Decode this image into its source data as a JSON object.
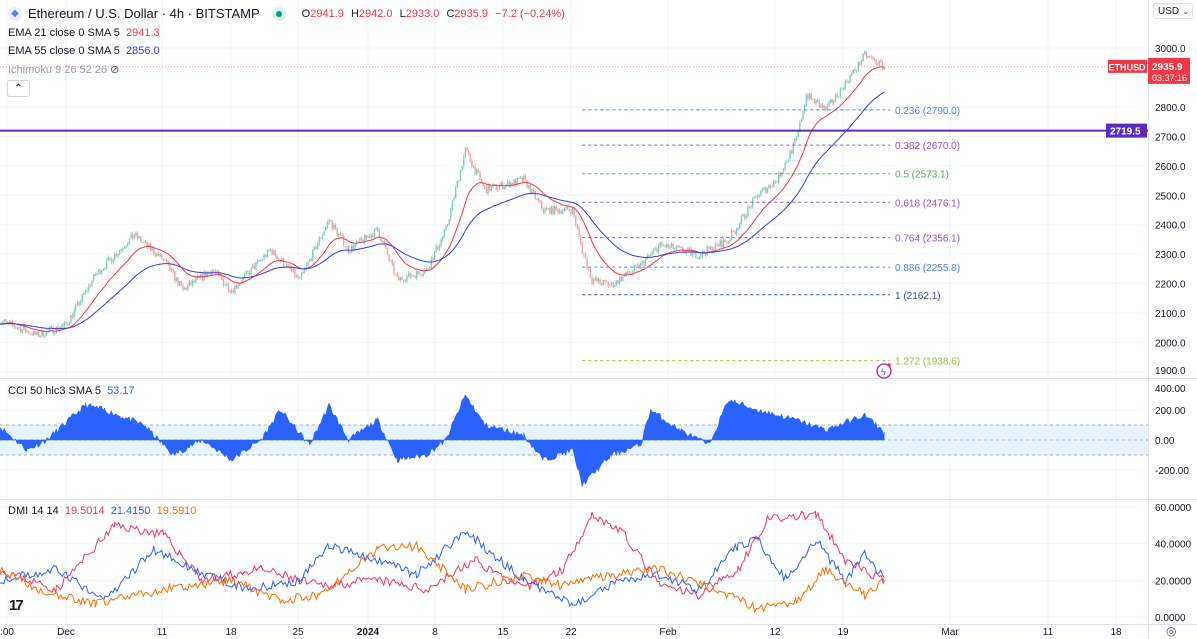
{
  "header": {
    "symbol_title": "Ethereum / U.S. Dollar · 4h · BITSTAMP",
    "ohlc": {
      "o_label": "O",
      "o": "2941.9",
      "h_label": "H",
      "h": "2942.0",
      "l_label": "L",
      "l": "2933.0",
      "c_label": "C",
      "c": "2935.9",
      "change": "−7.2 (−0.24%)"
    },
    "currency": "USD",
    "collapse_icon": "chevron-up-icon"
  },
  "indicators": {
    "ema21": {
      "label": "EMA 21 close 0 SMA 5",
      "value": "2941.3",
      "color": "#f23645"
    },
    "ema55": {
      "label": "EMA 55 close 0 SMA 5",
      "value": "2856.0",
      "color": "#2f3de0"
    },
    "ichimoku": {
      "label": "Ichimoku 9 26 52 26",
      "hidden_icon": "eye-off-icon"
    },
    "cci": {
      "label": "CCI 50 hlc3 SMA 5",
      "value": "53.17",
      "color": "#2962ff"
    },
    "dmi": {
      "label": "DMI 14 14",
      "values": [
        "19.5014",
        "21.4150",
        "19.5910"
      ],
      "colors": [
        "#f23567",
        "#2962ff",
        "#ff6d00"
      ]
    }
  },
  "price_scale": {
    "ticks": [
      "3000.0",
      "2800.0",
      "2700.0",
      "2600.0",
      "2500.0",
      "2400.0",
      "2300.0",
      "2200.0",
      "2100.0",
      "2000.0",
      "1900.0"
    ]
  },
  "cci_scale": {
    "ticks": [
      "400.00",
      "200.00",
      "0.00",
      "-200.00"
    ]
  },
  "dmi_scale": {
    "ticks": [
      "60.0000",
      "40.0000",
      "20.0000",
      "0.0000"
    ]
  },
  "time_axis": {
    "labels": [
      ":00",
      "Dec",
      "11",
      "18",
      "25",
      "2024",
      "8",
      "15",
      "22",
      "Feb",
      "12",
      "19",
      "Mar",
      "11",
      "18"
    ]
  },
  "price_label": {
    "symbol": "ETHUSD",
    "price": "2935.9",
    "countdown": "03:37:16",
    "color": "#f23645"
  },
  "horizontal_line": {
    "value": "2719.5",
    "color": "#5b2bc0"
  },
  "fib_levels": [
    {
      "label": "0.236 (2790.0)",
      "value": 2790.0,
      "color": "#4f7ff0"
    },
    {
      "label": "0.382 (2670.0)",
      "value": 2670.0,
      "color": "#8459d6"
    },
    {
      "label": "0.5 (2573.1)",
      "value": 2573.1,
      "color": "#4caf50"
    },
    {
      "label": "0.618 (2476.1)",
      "value": 2476.1,
      "color": "#8459d6"
    },
    {
      "label": "0.764 (2356.1)",
      "value": 2356.1,
      "color": "#8459d6"
    },
    {
      "label": "0.886 (2255.8)",
      "value": 2255.8,
      "color": "#4f7ff0"
    },
    {
      "label": "1 (2162.1)",
      "value": 2162.1,
      "color": "#3949ab"
    },
    {
      "label": "1.272 (1938.6)",
      "value": 1938.6,
      "color": "#9bbf3a"
    }
  ],
  "colors": {
    "up": "#7dcfc2",
    "down": "#f2a3a3",
    "grid": "#f0f3fa",
    "cci_fill": "#2962ff",
    "cci_band": "#e6f2fd"
  },
  "chart_data": {
    "type": "candlestick",
    "price_range": [
      1880,
      3060
    ],
    "price_path": [
      [
        "2023-11-24",
        2076
      ],
      [
        "2023-11-28",
        2025
      ],
      [
        "2023-12-01",
        2059
      ],
      [
        "2023-12-04",
        2229
      ],
      [
        "2023-12-08",
        2365
      ],
      [
        "2023-12-11",
        2280
      ],
      [
        "2023-12-13",
        2178
      ],
      [
        "2023-12-16",
        2246
      ],
      [
        "2023-12-18",
        2178
      ],
      [
        "2023-12-22",
        2314
      ],
      [
        "2023-12-25",
        2212
      ],
      [
        "2023-12-28",
        2416
      ],
      [
        "2023-12-30",
        2314
      ],
      [
        "2024-01-02",
        2382
      ],
      [
        "2024-01-04",
        2212
      ],
      [
        "2024-01-07",
        2246
      ],
      [
        "2024-01-09",
        2382
      ],
      [
        "2024-01-11",
        2654
      ],
      [
        "2024-01-13",
        2518
      ],
      [
        "2024-01-17",
        2552
      ],
      [
        "2024-01-19",
        2450
      ],
      [
        "2024-01-22",
        2450
      ],
      [
        "2024-01-23",
        2314
      ],
      [
        "2024-01-24",
        2212
      ],
      [
        "2024-01-26",
        2195
      ],
      [
        "2024-01-29",
        2263
      ],
      [
        "2024-01-31",
        2331
      ],
      [
        "2024-02-04",
        2297
      ],
      [
        "2024-02-07",
        2348
      ],
      [
        "2024-02-10",
        2501
      ],
      [
        "2024-02-12",
        2552
      ],
      [
        "2024-02-14",
        2688
      ],
      [
        "2024-02-15",
        2840
      ],
      [
        "2024-02-17",
        2789
      ],
      [
        "2024-02-20",
        2925
      ],
      [
        "2024-02-21",
        2976
      ],
      [
        "2024-02-23",
        2935.9
      ]
    ],
    "fib_start": "2024-01-23",
    "cci": {
      "range": [
        -320,
        420
      ],
      "bands": [
        100,
        -100
      ],
      "points": [
        [
          "2023-11-24",
          100
        ],
        [
          "2023-11-27",
          -67
        ],
        [
          "2023-11-29",
          0
        ],
        [
          "2023-12-03",
          233
        ],
        [
          "2023-12-05",
          200
        ],
        [
          "2023-12-09",
          100
        ],
        [
          "2023-12-12",
          -100
        ],
        [
          "2023-12-15",
          0
        ],
        [
          "2023-12-18",
          -133
        ],
        [
          "2023-12-21",
          0
        ],
        [
          "2023-12-23",
          200
        ],
        [
          "2023-12-26",
          -33
        ],
        [
          "2023-12-28",
          233
        ],
        [
          "2023-12-30",
          0
        ],
        [
          "2024-01-02",
          133
        ],
        [
          "2024-01-04",
          -133
        ],
        [
          "2024-01-07",
          -100
        ],
        [
          "2024-01-09",
          0
        ],
        [
          "2024-01-11",
          300
        ],
        [
          "2024-01-13",
          100
        ],
        [
          "2024-01-17",
          33
        ],
        [
          "2024-01-19",
          -133
        ],
        [
          "2024-01-22",
          -67
        ],
        [
          "2024-01-23",
          -300
        ],
        [
          "2024-01-26",
          -100
        ],
        [
          "2024-01-29",
          -33
        ],
        [
          "2024-01-30",
          200
        ],
        [
          "2024-02-02",
          67
        ],
        [
          "2024-02-05",
          -33
        ],
        [
          "2024-02-07",
          267
        ],
        [
          "2024-02-10",
          200
        ],
        [
          "2024-02-14",
          133
        ],
        [
          "2024-02-17",
          67
        ],
        [
          "2024-02-21",
          167
        ],
        [
          "2024-02-23",
          53.17
        ]
      ]
    },
    "dmi": {
      "range": [
        0,
        60
      ],
      "series": [
        {
          "points": [
            [
              "2023-11-24",
              26
            ],
            [
              "2023-11-30",
              15
            ],
            [
              "2023-12-06",
              50
            ],
            [
              "2023-12-11",
              45
            ],
            [
              "2023-12-15",
              20
            ],
            [
              "2023-12-21",
              26
            ],
            [
              "2023-12-27",
              17
            ],
            [
              "2024-01-02",
              20
            ],
            [
              "2024-01-07",
              15
            ],
            [
              "2024-01-12",
              31
            ],
            [
              "2024-01-17",
              15
            ],
            [
              "2024-01-21",
              26
            ],
            [
              "2024-01-24",
              56
            ],
            [
              "2024-01-27",
              47
            ],
            [
              "2024-01-31",
              17
            ],
            [
              "2024-02-04",
              12
            ],
            [
              "2024-02-08",
              26
            ],
            [
              "2024-02-11",
              53
            ],
            [
              "2024-02-16",
              56
            ],
            [
              "2024-02-19",
              31
            ],
            [
              "2024-02-23",
              19.5
            ]
          ]
        },
        {
          "points": [
            [
              "2023-11-24",
              20
            ],
            [
              "2023-11-30",
              26
            ],
            [
              "2023-12-05",
              9
            ],
            [
              "2023-12-10",
              37
            ],
            [
              "2023-12-15",
              23
            ],
            [
              "2023-12-20",
              15
            ],
            [
              "2023-12-25",
              20
            ],
            [
              "2023-12-28",
              39
            ],
            [
              "2024-01-02",
              31
            ],
            [
              "2024-01-06",
              23
            ],
            [
              "2024-01-11",
              47
            ],
            [
              "2024-01-17",
              20
            ],
            [
              "2024-01-22",
              7
            ],
            [
              "2024-01-27",
              20
            ],
            [
              "2024-01-31",
              23
            ],
            [
              "2024-02-04",
              15
            ],
            [
              "2024-02-08",
              39
            ],
            [
              "2024-02-10",
              42
            ],
            [
              "2024-02-13",
              20
            ],
            [
              "2024-02-16",
              42
            ],
            [
              "2024-02-19",
              20
            ],
            [
              "2024-02-21",
              34
            ],
            [
              "2024-02-23",
              21.4
            ]
          ]
        },
        {
          "points": [
            [
              "2023-11-24",
              26
            ],
            [
              "2023-11-28",
              15
            ],
            [
              "2023-12-04",
              7
            ],
            [
              "2023-12-11",
              15
            ],
            [
              "2023-12-18",
              20
            ],
            [
              "2023-12-23",
              9
            ],
            [
              "2023-12-27",
              12
            ],
            [
              "2024-01-02",
              37
            ],
            [
              "2024-01-06",
              39
            ],
            [
              "2024-01-11",
              15
            ],
            [
              "2024-01-17",
              23
            ],
            [
              "2024-01-21",
              17
            ],
            [
              "2024-01-26",
              23
            ],
            [
              "2024-01-31",
              26
            ],
            [
              "2024-02-06",
              15
            ],
            [
              "2024-02-10",
              4
            ],
            [
              "2024-02-14",
              9
            ],
            [
              "2024-02-17",
              26
            ],
            [
              "2024-02-21",
              12
            ],
            [
              "2024-02-23",
              19.6
            ]
          ]
        }
      ]
    }
  }
}
